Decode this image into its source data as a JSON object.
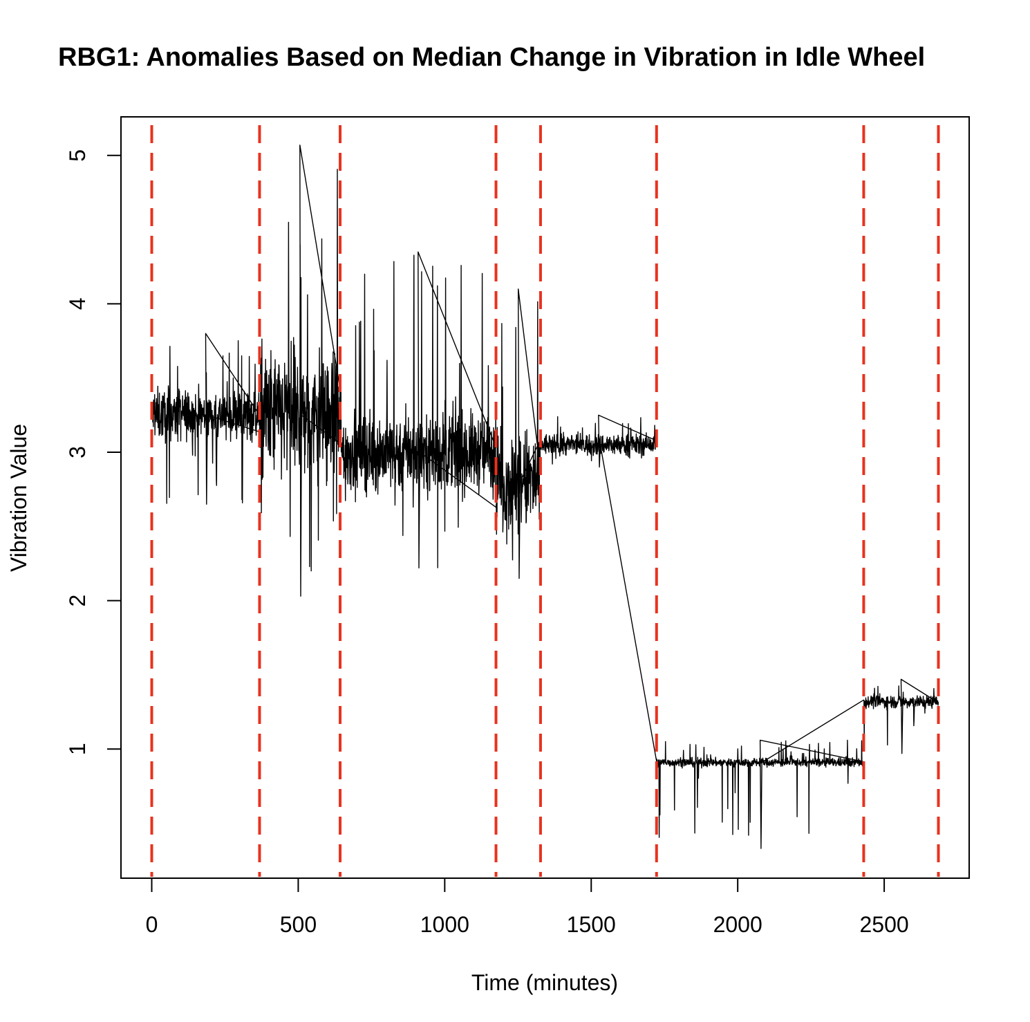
{
  "chart_data": {
    "type": "line",
    "title": "RBG1: Anomalies Based on Median Change in Vibration in Idle Wheel",
    "xlabel": "Time (minutes)",
    "ylabel": "Vibration Value",
    "xlim": [
      -105,
      2790
    ],
    "ylim": [
      0.13,
      5.26
    ],
    "x_ticks": [
      0,
      500,
      1000,
      1500,
      2000,
      2500
    ],
    "x_tick_labels": [
      "0",
      "500",
      "1000",
      "1500",
      "2000",
      "2500"
    ],
    "y_ticks": [
      1,
      2,
      3,
      4,
      5
    ],
    "y_tick_labels": [
      "1",
      "2",
      "3",
      "4",
      "5"
    ],
    "grid": false,
    "line_color": "#000000",
    "changepoint_color": "#e8321e",
    "changepoints_x": [
      0,
      368,
      643,
      1175,
      1327,
      1723,
      2430,
      2685
    ],
    "series": [
      {
        "segments": [
          {
            "x_start": 0,
            "x_end": 368,
            "median": 3.25,
            "spread": 0.12,
            "spike_max": 3.8,
            "spike_min": 2.65
          },
          {
            "x_start": 368,
            "x_end": 643,
            "median": 3.25,
            "spread": 0.3,
            "spike_max": 5.07,
            "spike_min": 2.03
          },
          {
            "x_start": 643,
            "x_end": 1175,
            "median": 3.0,
            "spread": 0.18,
            "spike_max": 4.35,
            "spike_min": 2.22
          },
          {
            "x_start": 1175,
            "x_end": 1327,
            "median": 2.8,
            "spread": 0.25,
            "spike_max": 4.1,
            "spike_min": 2.15
          },
          {
            "x_start": 1327,
            "x_end": 1723,
            "median": 3.05,
            "spread": 0.05,
            "spike_max": 3.25,
            "spike_min": 2.9
          },
          {
            "x_start": 1723,
            "x_end": 2430,
            "median": 0.91,
            "spread": 0.02,
            "spike_max": 1.06,
            "spike_min": 0.33
          },
          {
            "x_start": 2430,
            "x_end": 2685,
            "median": 1.32,
            "spread": 0.03,
            "spike_max": 1.47,
            "spike_min": 0.97
          }
        ]
      }
    ]
  }
}
